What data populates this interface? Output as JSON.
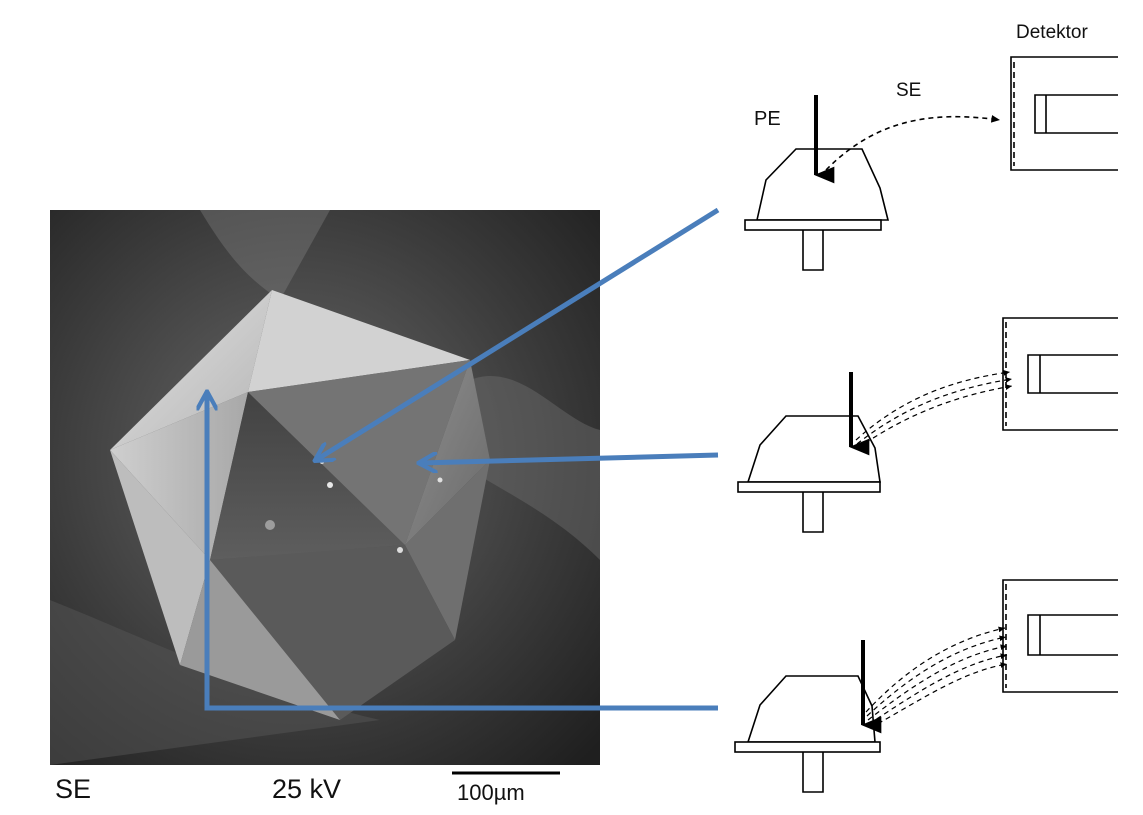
{
  "sem_image": {
    "mode_label": "SE",
    "voltage_label": "25 kV",
    "scale_bar_label": "100µm"
  },
  "schematic": {
    "detector_label": "Detektor",
    "primary_beam_label": "PE",
    "secondary_electron_label": "SE"
  },
  "colors": {
    "arrow_blue": "#4a7ebb",
    "sem_background": "#3a3a3a",
    "line_black": "#000000"
  }
}
